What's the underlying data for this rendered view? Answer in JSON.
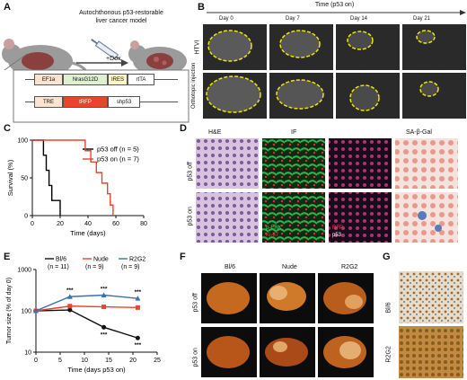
{
  "panels": {
    "A": {
      "letter": "A",
      "title_line1": "Autochthonous p53-restorable",
      "title_line2": "liver cancer model",
      "dox_label": "+Dox",
      "construct1": {
        "promoter": "EF1a",
        "gene": "NrasG12D",
        "ires": "IRES",
        "tail": "rtTA"
      },
      "construct2": {
        "promoter": "TRE",
        "gene": "tRFP",
        "tail": "shp53"
      }
    },
    "B": {
      "letter": "B",
      "timeline_label": "Time (p53 on)",
      "days": [
        "Day 0",
        "Day 7",
        "Day 14",
        "Day 21"
      ],
      "row_labels": [
        "HTVI",
        "Orthotopic injection"
      ]
    },
    "C": {
      "letter": "C"
    },
    "D": {
      "letter": "D",
      "col_labels": [
        "H&E",
        "IF",
        "SA-β-Gal"
      ],
      "row_labels": [
        "p53 off",
        "p53 on"
      ],
      "stain_labels": {
        "perk": "p-ERK",
        "ki67": "Ki-67",
        "rfp": "RFP",
        "p53": "p53"
      }
    },
    "E": {
      "letter": "E",
      "stars": [
        "***",
        "***",
        "***",
        "***",
        "***"
      ]
    },
    "F": {
      "letter": "F",
      "col_labels": [
        "Bl/6",
        "Nude",
        "R2G2"
      ],
      "row_labels": [
        "p53 off",
        "p53 on"
      ]
    },
    "G": {
      "letter": "G",
      "row_labels": [
        "Bl/6",
        "R2G2"
      ]
    }
  },
  "chart_data": [
    {
      "type": "line",
      "panel": "C",
      "xlabel": "Time (days)",
      "ylabel": "Survival (%)",
      "xlim": [
        0,
        80
      ],
      "ylim": [
        0,
        100
      ],
      "xticks": [
        0,
        20,
        40,
        60,
        80
      ],
      "yticks": [
        0,
        50,
        100
      ],
      "legend_position": "top-right",
      "series": [
        {
          "name": "p53 off (n = 5)",
          "color": "#000000",
          "x": [
            0,
            8,
            8,
            10,
            10,
            12,
            12,
            14,
            14,
            20,
            20
          ],
          "y": [
            100,
            100,
            80,
            80,
            60,
            60,
            40,
            40,
            20,
            20,
            0
          ]
        },
        {
          "name": "p53 on (n = 7)",
          "color": "#e8452c",
          "x": [
            0,
            38,
            38,
            42,
            42,
            46,
            46,
            50,
            50,
            54,
            54,
            56,
            56,
            58,
            58
          ],
          "y": [
            100,
            100,
            86,
            86,
            71,
            71,
            57,
            57,
            43,
            43,
            29,
            29,
            14,
            14,
            0
          ]
        }
      ]
    },
    {
      "type": "line",
      "panel": "E",
      "xlabel": "Time (days p53 on)",
      "ylabel": "Tumor size (% of day 0)",
      "xlim": [
        0,
        25
      ],
      "ylim": [
        10,
        1000
      ],
      "yscale": "log",
      "xticks": [
        0,
        5,
        10,
        15,
        20,
        25
      ],
      "yticks": [
        10,
        100,
        1000
      ],
      "legend_position": "top",
      "series": [
        {
          "name": "Bl/6 (n = 11)",
          "color": "#111111",
          "marker": "circle",
          "x": [
            0,
            7,
            14,
            21
          ],
          "y": [
            100,
            105,
            40,
            22
          ]
        },
        {
          "name": "Nude (n = 9)",
          "color": "#e8452c",
          "marker": "square",
          "x": [
            0,
            7,
            14,
            21
          ],
          "y": [
            100,
            130,
            125,
            120
          ]
        },
        {
          "name": "R2G2 (n = 9)",
          "color": "#3a6fb0",
          "marker": "triangle",
          "x": [
            0,
            7,
            14,
            21
          ],
          "y": [
            100,
            220,
            240,
            200
          ]
        }
      ]
    }
  ],
  "colors": {
    "red": "#e8452c",
    "blue": "#3a6fb0",
    "yellow": "#f2e600"
  }
}
